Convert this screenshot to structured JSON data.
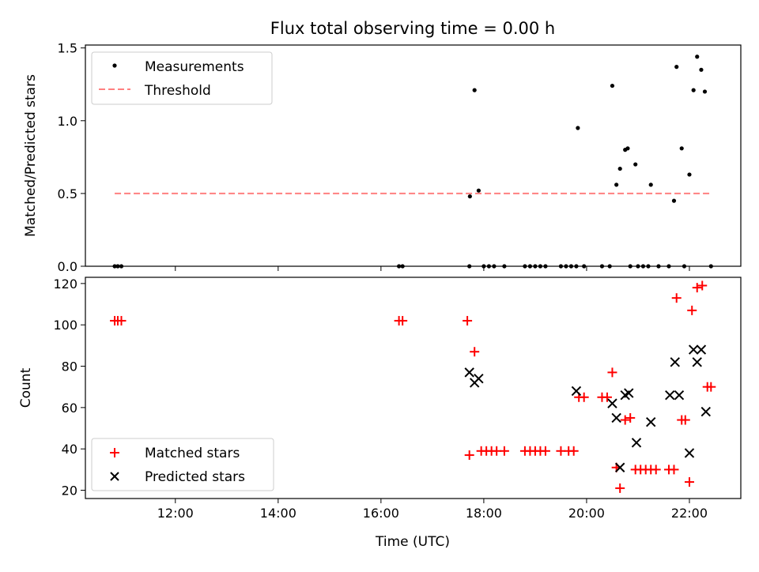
{
  "chart_data": [
    {
      "type": "scatter",
      "title": "Flux total observing time = 0.00 h",
      "ylabel": "Matched/Predicted stars",
      "xlabel": "",
      "xlim": [
        10.25,
        23.0
      ],
      "ylim": [
        0,
        1.52
      ],
      "x_ticks": [
        12,
        14,
        16,
        18,
        20,
        22
      ],
      "y_ticks": [
        0.0,
        0.5,
        1.0,
        1.5
      ],
      "y_tick_labels": [
        "0.0",
        "0.5",
        "1.0",
        "1.5"
      ],
      "legend_position": "upper-left",
      "threshold": {
        "name": "Threshold",
        "y": 0.5,
        "x_range": [
          10.82,
          22.42
        ],
        "color": "#ff8080"
      },
      "series": [
        {
          "name": "Measurements",
          "color": "#000000",
          "marker": "dot",
          "points": [
            [
              10.82,
              0
            ],
            [
              10.88,
              0
            ],
            [
              10.95,
              0
            ],
            [
              16.35,
              0
            ],
            [
              16.42,
              0
            ],
            [
              17.72,
              0
            ],
            [
              17.73,
              0.48
            ],
            [
              17.82,
              1.21
            ],
            [
              17.9,
              0.52
            ],
            [
              18.0,
              0
            ],
            [
              18.1,
              0
            ],
            [
              18.2,
              0
            ],
            [
              18.4,
              0
            ],
            [
              18.8,
              0
            ],
            [
              18.9,
              0
            ],
            [
              19.0,
              0
            ],
            [
              19.1,
              0
            ],
            [
              19.2,
              0
            ],
            [
              19.5,
              0
            ],
            [
              19.6,
              0
            ],
            [
              19.7,
              0
            ],
            [
              19.8,
              0
            ],
            [
              19.83,
              0.95
            ],
            [
              19.95,
              0
            ],
            [
              20.3,
              0
            ],
            [
              20.45,
              0
            ],
            [
              20.5,
              1.24
            ],
            [
              20.58,
              0.56
            ],
            [
              20.65,
              0.67
            ],
            [
              20.75,
              0.8
            ],
            [
              20.8,
              0.81
            ],
            [
              20.85,
              0
            ],
            [
              20.95,
              0.7
            ],
            [
              21.0,
              0
            ],
            [
              21.1,
              0
            ],
            [
              21.2,
              0
            ],
            [
              21.25,
              0.56
            ],
            [
              21.4,
              0
            ],
            [
              21.6,
              0
            ],
            [
              21.7,
              0.45
            ],
            [
              21.75,
              1.37
            ],
            [
              21.85,
              0.81
            ],
            [
              21.9,
              0
            ],
            [
              22.0,
              0.63
            ],
            [
              22.08,
              1.21
            ],
            [
              22.15,
              1.44
            ],
            [
              22.23,
              1.35
            ],
            [
              22.3,
              1.2
            ],
            [
              22.42,
              0
            ]
          ]
        }
      ]
    },
    {
      "type": "scatter",
      "title": "",
      "ylabel": "Count",
      "xlabel": "Time (UTC)",
      "xlim": [
        10.25,
        23.0
      ],
      "ylim": [
        16,
        123
      ],
      "x_ticks": [
        12,
        14,
        16,
        18,
        20,
        22
      ],
      "x_tick_labels": [
        "12:00",
        "14:00",
        "16:00",
        "18:00",
        "20:00",
        "22:00"
      ],
      "y_ticks": [
        20,
        40,
        60,
        80,
        100,
        120
      ],
      "y_tick_labels": [
        "20",
        "40",
        "60",
        "80",
        "100",
        "120"
      ],
      "legend_position": "lower-left",
      "series": [
        {
          "name": "Matched stars",
          "color": "#ff0000",
          "marker": "plus",
          "points": [
            [
              10.82,
              102
            ],
            [
              10.88,
              102
            ],
            [
              10.95,
              102
            ],
            [
              16.35,
              102
            ],
            [
              16.42,
              102
            ],
            [
              17.68,
              102
            ],
            [
              17.72,
              37
            ],
            [
              17.82,
              87
            ],
            [
              17.95,
              39
            ],
            [
              18.05,
              39
            ],
            [
              18.15,
              39
            ],
            [
              18.25,
              39
            ],
            [
              18.4,
              39
            ],
            [
              18.8,
              39
            ],
            [
              18.9,
              39
            ],
            [
              19.0,
              39
            ],
            [
              19.1,
              39
            ],
            [
              19.2,
              39
            ],
            [
              19.5,
              39
            ],
            [
              19.65,
              39
            ],
            [
              19.75,
              39
            ],
            [
              19.85,
              65
            ],
            [
              19.95,
              65
            ],
            [
              20.3,
              65
            ],
            [
              20.4,
              65
            ],
            [
              20.5,
              77
            ],
            [
              20.58,
              31
            ],
            [
              20.65,
              21
            ],
            [
              20.75,
              54
            ],
            [
              20.85,
              55
            ],
            [
              20.95,
              30
            ],
            [
              21.05,
              30
            ],
            [
              21.15,
              30
            ],
            [
              21.25,
              30
            ],
            [
              21.35,
              30
            ],
            [
              21.6,
              30
            ],
            [
              21.7,
              30
            ],
            [
              21.75,
              113
            ],
            [
              21.85,
              54
            ],
            [
              21.92,
              54
            ],
            [
              22.0,
              24
            ],
            [
              22.05,
              107
            ],
            [
              22.15,
              118
            ],
            [
              22.25,
              119
            ],
            [
              22.35,
              70
            ],
            [
              22.42,
              70
            ]
          ]
        },
        {
          "name": "Predicted stars",
          "color": "#000000",
          "marker": "x",
          "points": [
            [
              17.72,
              77
            ],
            [
              17.82,
              72
            ],
            [
              17.9,
              74
            ],
            [
              19.8,
              68
            ],
            [
              20.5,
              62
            ],
            [
              20.58,
              55
            ],
            [
              20.65,
              31
            ],
            [
              20.75,
              66
            ],
            [
              20.82,
              67
            ],
            [
              20.97,
              43
            ],
            [
              21.25,
              53
            ],
            [
              21.62,
              66
            ],
            [
              21.72,
              82
            ],
            [
              21.8,
              66
            ],
            [
              22.0,
              38
            ],
            [
              22.08,
              88
            ],
            [
              22.15,
              82
            ],
            [
              22.23,
              88
            ],
            [
              22.32,
              58
            ]
          ]
        }
      ]
    }
  ]
}
